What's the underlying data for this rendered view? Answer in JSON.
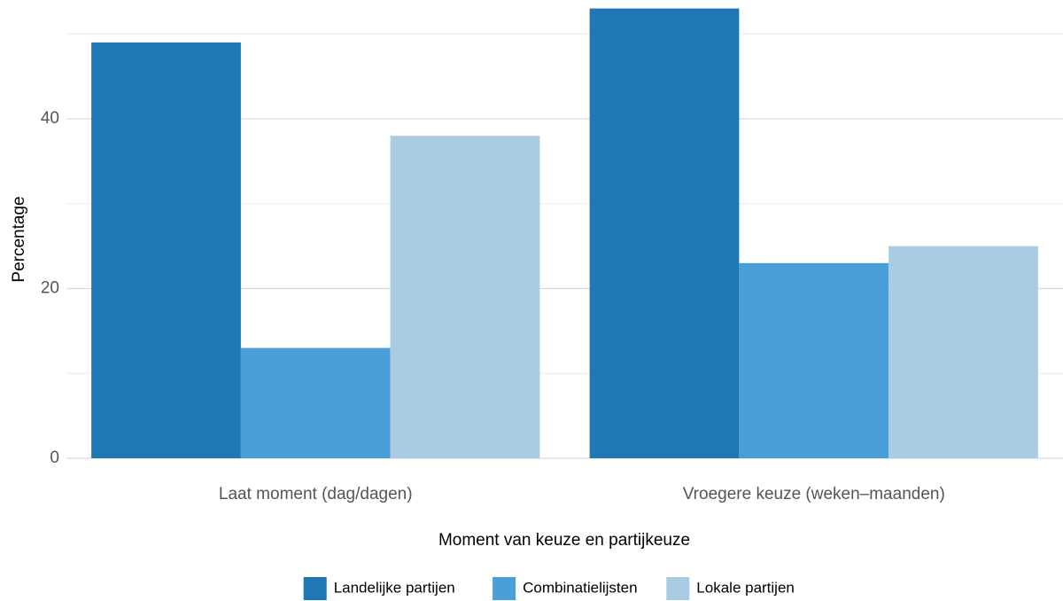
{
  "chart_data": {
    "type": "bar",
    "x_label": "Moment van keuze en partijkeuze",
    "y_label": "Percentage",
    "categories": [
      "Laat moment (dag/dagen)",
      "Vroegere keuze (weken–maanden)"
    ],
    "series": [
      {
        "name": "Landelijke partijen",
        "color": "#1f77b4",
        "values": [
          49,
          53
        ]
      },
      {
        "name": "Combinatielijsten",
        "color": "#4b9fd8",
        "values": [
          13,
          23
        ]
      },
      {
        "name": "Lokale partijen",
        "color": "#a9cce3",
        "values": [
          38,
          25
        ]
      }
    ],
    "ylim": [
      0,
      54
    ],
    "yticks": [
      0,
      20,
      40
    ],
    "minor_yticks": [
      10,
      30,
      50
    ],
    "grid": true,
    "legend": "bottom"
  }
}
